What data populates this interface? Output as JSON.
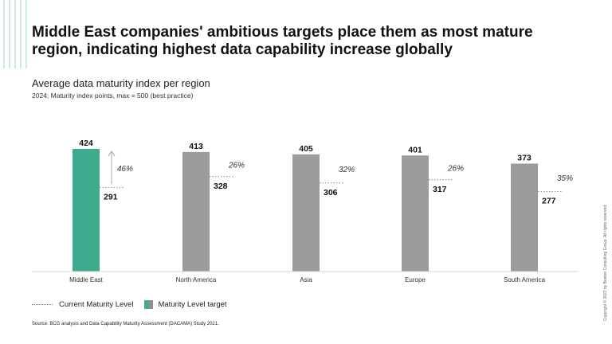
{
  "title": "Middle East companies' ambitious targets place them as most mature region, indicating highest data capability increase globally",
  "subtitle": "Average data maturity index per region",
  "unit_note": "2024; Maturity index points, max = 500 (best practice)",
  "chart_data": {
    "type": "bar",
    "title": "Average data maturity index per region",
    "ylim": [
      0,
      500
    ],
    "categories": [
      "Middle East",
      "North America",
      "Asia",
      "Europe",
      "South America"
    ],
    "series": [
      {
        "name": "Maturity Level target",
        "values": [
          424,
          413,
          405,
          401,
          373
        ]
      },
      {
        "name": "Current Maturity Level",
        "values": [
          291,
          328,
          306,
          317,
          277
        ]
      }
    ],
    "increase_labels": [
      "46%",
      "26%",
      "32%",
      "26%",
      "35%"
    ],
    "highlight_index": 0
  },
  "legend": {
    "current": "Current Maturity Level",
    "target": "Maturity Level target"
  },
  "source": "Source: BCG analysis and Data Capability Maturity Assessment (DACAMA) Study 2021.",
  "copyright": "Copyright © 2022 by Boston Consulting Group. All rights reserved.",
  "colors": {
    "highlight": "#3dac8e",
    "bar": "#9c9c9c",
    "axis": "#d9d9d9",
    "text": "#111111"
  }
}
